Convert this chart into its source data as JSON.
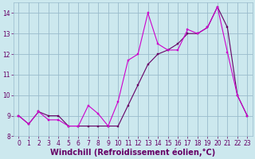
{
  "xlabel": "Windchill (Refroidissement éolien,°C)",
  "bg_color": "#cce8ee",
  "grid_color": "#99bbcc",
  "line1_color": "#cc00cc",
  "line2_color": "#660066",
  "x_values": [
    0,
    1,
    2,
    3,
    4,
    5,
    6,
    7,
    8,
    9,
    10,
    11,
    12,
    13,
    14,
    15,
    16,
    17,
    18,
    19,
    20,
    21,
    22,
    23
  ],
  "line1_y": [
    9.0,
    8.6,
    9.2,
    8.8,
    8.8,
    8.5,
    8.5,
    9.5,
    9.1,
    8.5,
    9.7,
    11.7,
    12.0,
    14.0,
    12.5,
    12.2,
    12.2,
    13.2,
    13.0,
    13.3,
    14.3,
    12.1,
    10.0,
    9.0
  ],
  "line2_y": [
    9.0,
    8.6,
    9.2,
    9.0,
    9.0,
    8.5,
    8.5,
    8.5,
    8.5,
    8.5,
    8.5,
    9.5,
    10.5,
    11.5,
    12.0,
    12.2,
    12.5,
    13.0,
    13.0,
    13.3,
    14.3,
    13.3,
    10.0,
    9.0
  ],
  "ylim": [
    8.0,
    14.5
  ],
  "xlim": [
    -0.5,
    23.5
  ],
  "yticks": [
    8,
    9,
    10,
    11,
    12,
    13,
    14
  ],
  "xticks": [
    0,
    1,
    2,
    3,
    4,
    5,
    6,
    7,
    8,
    9,
    10,
    11,
    12,
    13,
    14,
    15,
    16,
    17,
    18,
    19,
    20,
    21,
    22,
    23
  ],
  "tick_fontsize": 5.5,
  "xlabel_fontsize": 7.0
}
